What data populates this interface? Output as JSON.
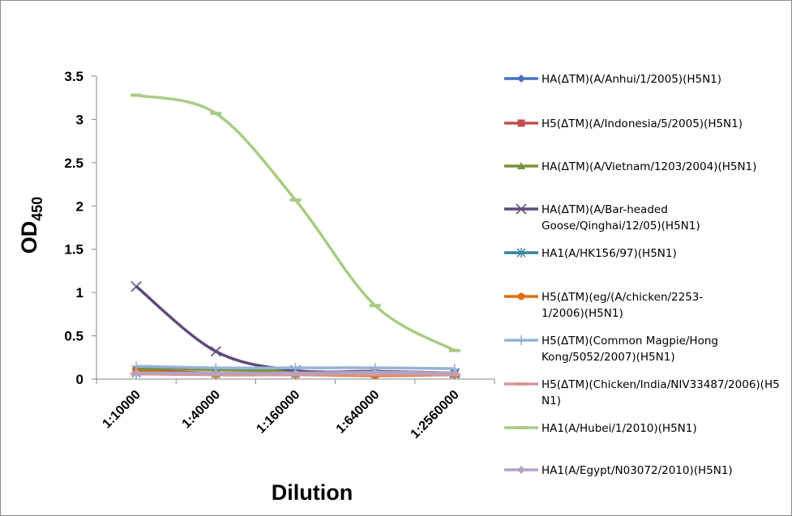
{
  "chart_data": {
    "type": "line",
    "title": "",
    "xlabel": "Dilution",
    "ylabel": "OD",
    "ylabel_subscript": "450",
    "categories": [
      "1:10000",
      "1:40000",
      "1:160000",
      "1:640000",
      "1:2560000"
    ],
    "ylim": [
      0,
      3.5
    ],
    "yticks": [
      "0",
      "0.5",
      "1",
      "1.5",
      "2",
      "2.5",
      "3",
      "3.5"
    ],
    "grid": false,
    "legend_position": "right",
    "series": [
      {
        "name": "HA(ΔTM)(A/Anhui/1/2005)(H5N1)",
        "lines": [
          "HA(ΔTM)(A/Anhui/1/2005)(H5N1)"
        ],
        "color": "#4472C4",
        "marker": "diamond",
        "bold": false,
        "values": [
          0.08,
          0.07,
          0.07,
          0.06,
          0.06
        ]
      },
      {
        "name": "H5(ΔTM)(A/Indonesia/5/2005)(H5N1)",
        "lines": [
          "H5(ΔTM)(A/Indonesia/5/2005)(H5N1)"
        ],
        "color": "#C0504D",
        "marker": "square",
        "bold": false,
        "values": [
          0.1,
          0.07,
          0.07,
          0.06,
          0.06
        ]
      },
      {
        "name": "HA(ΔTM)(A/Vietnam/1203/2004)(H5N1)",
        "lines": [
          "HA(ΔTM)(A/Vietnam/1203/2004)(H5N1)"
        ],
        "color": "#77933C",
        "marker": "triangle",
        "bold": false,
        "values": [
          0.12,
          0.11,
          0.09,
          0.07,
          0.06
        ]
      },
      {
        "name": "HA(ΔTM)(A/Bar-headed Goose/Qinghai/12/05)(H5N1)",
        "lines": [
          "HA(ΔTM)(A/Bar-headed",
          "Goose/Qinghai/12/05)(H5N1)"
        ],
        "color": "#604A7B",
        "marker": "x",
        "bold": false,
        "values": [
          1.07,
          0.32,
          0.1,
          0.09,
          0.07
        ]
      },
      {
        "name": "HA1(A/HK156/97)(H5N1)",
        "lines": [
          "HA1(A/HK156/97)(H5N1)"
        ],
        "color": "#31859C",
        "marker": "star",
        "bold": false,
        "values": [
          0.07,
          0.06,
          0.06,
          0.06,
          0.06
        ]
      },
      {
        "name": "H5(ΔTM)(eg/(A/chicken/2253-1/2006)(H5N1)",
        "lines": [
          "H5(ΔTM)(eg/(A/chicken/2253-",
          "1/2006)(H5N1)"
        ],
        "color": "#E46C0A",
        "marker": "circle",
        "bold": false,
        "values": [
          0.09,
          0.05,
          0.05,
          0.04,
          0.05
        ]
      },
      {
        "name": "H5(ΔTM)(Common Magpie/Hong Kong/5052/2007)(H5N1)",
        "lines": [
          "H5(ΔTM)(Common Magpie/Hong",
          "Kong/5052/2007)(H5N1)"
        ],
        "color": "#95B3D7",
        "marker": "plus",
        "bold": false,
        "values": [
          0.15,
          0.13,
          0.13,
          0.13,
          0.12
        ]
      },
      {
        "name": "H5(ΔTM)(Chicken/India/NIV33487/2006)(H5N1)",
        "lines": [
          "H5(ΔTM)(Chicken/India/NIV33487/2006)(H5",
          "N1)"
        ],
        "color": "#D99694",
        "marker": "dash",
        "bold": false,
        "values": [
          0.06,
          0.05,
          0.05,
          0.05,
          0.05
        ]
      },
      {
        "name": "HA1(A/Hubei/1/2010)(H5N1)",
        "lines": [
          "HA1(A/Hubei/1/2010)(H5N1)"
        ],
        "color": "#A9CB85",
        "marker": "dash",
        "bold": true,
        "values": [
          3.28,
          3.07,
          2.07,
          0.85,
          0.33
        ]
      },
      {
        "name": "HA1(A/Egypt/N03072/2010)(H5N1)",
        "lines": [
          "HA1(A/Egypt/N03072/2010)(H5N1)"
        ],
        "color": "#B3A2C7",
        "marker": "diamond",
        "bold": false,
        "values": [
          0.07,
          0.07,
          0.07,
          0.08,
          0.07
        ]
      }
    ]
  }
}
